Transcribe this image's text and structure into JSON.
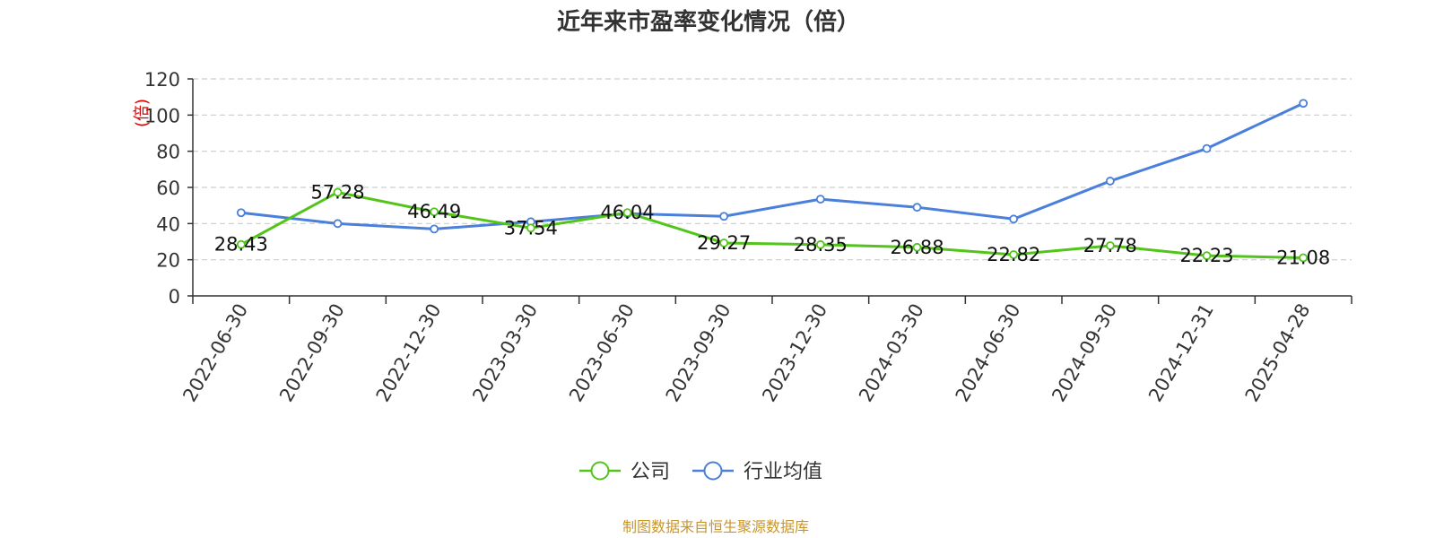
{
  "chart_data": {
    "type": "line",
    "title": "近年来市盈率变化情况（倍）",
    "ylabel": "(倍)",
    "xlabel": "",
    "ylim": [
      0,
      120
    ],
    "yticks": [
      0,
      20,
      40,
      60,
      80,
      100,
      120
    ],
    "grid": true,
    "legend_position": "bottom-center",
    "categories": [
      "2022-06-30",
      "2022-09-30",
      "2022-12-30",
      "2023-03-30",
      "2023-06-30",
      "2023-09-30",
      "2023-12-30",
      "2024-03-30",
      "2024-06-30",
      "2024-09-30",
      "2024-12-31",
      "2025-04-28"
    ],
    "series": [
      {
        "name": "公司",
        "color": "#52c41a",
        "values": [
          28.43,
          57.28,
          46.49,
          37.54,
          46.04,
          29.27,
          28.35,
          26.88,
          22.82,
          27.78,
          22.23,
          21.08
        ],
        "labels": [
          "28.43",
          "57.28",
          "46.49",
          "37.54",
          "46.04",
          "29.27",
          "28.35",
          "26.88",
          "22.82",
          "27.78",
          "22.23",
          "21.08"
        ]
      },
      {
        "name": "行业均值",
        "color": "#4a7fdc",
        "values": [
          46,
          40,
          37,
          41,
          45.5,
          44,
          53.5,
          49,
          42.5,
          63.5,
          81.5,
          106.5
        ]
      }
    ],
    "source": "制图数据来自恒生聚源数据库"
  },
  "colors": {
    "title": "#333333",
    "axis": "#333333",
    "grid": "#cccccc",
    "ylabel": "#e00000",
    "source": "#c8962a"
  }
}
